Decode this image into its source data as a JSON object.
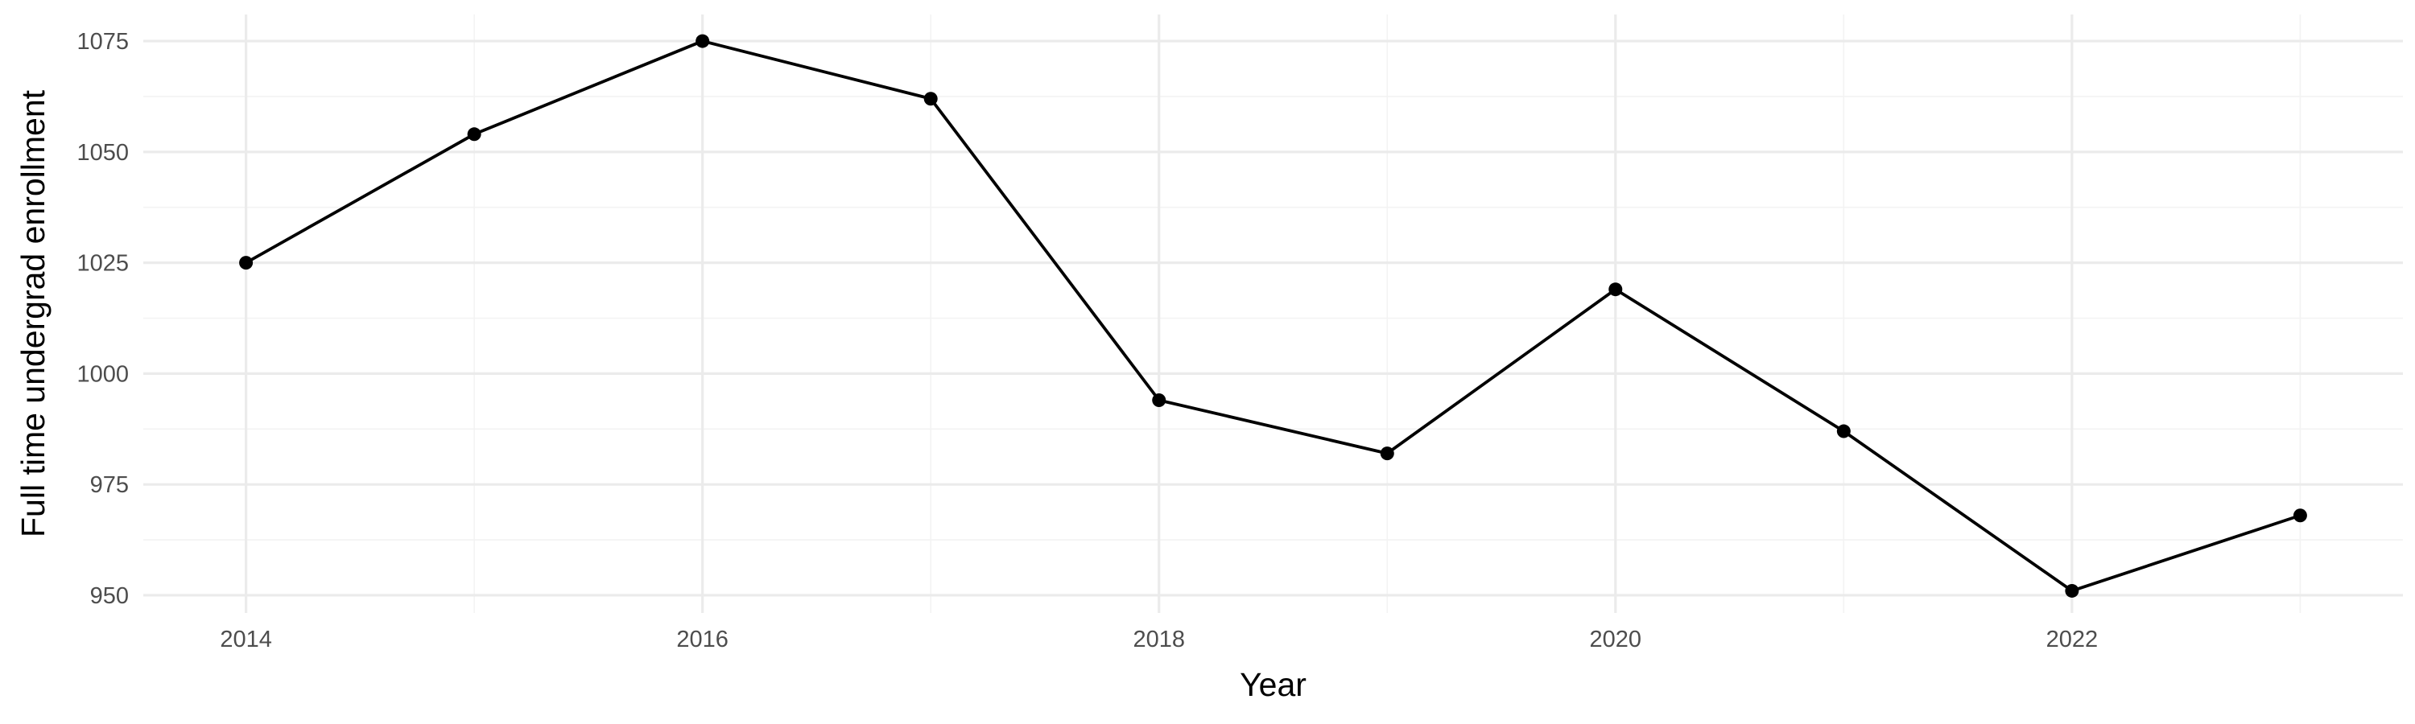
{
  "chart_data": {
    "type": "line",
    "title": "",
    "xlabel": "Year",
    "ylabel": "Full time undergrad enrollment",
    "x": [
      2014,
      2015,
      2016,
      2017,
      2018,
      2019,
      2020,
      2021,
      2022,
      2023
    ],
    "series": [
      {
        "values": [
          1025,
          1054,
          1075,
          1062,
          994,
          982,
          1019,
          987,
          951,
          968
        ],
        "color": "#000000"
      }
    ],
    "xlim": [
      2013.55,
      2023.45
    ],
    "ylim": [
      946,
      1081
    ],
    "x_ticks": [
      2014,
      2016,
      2018,
      2020,
      2022
    ],
    "x_tick_labels": [
      "2014",
      "2016",
      "2018",
      "2020",
      "2022"
    ],
    "y_ticks": [
      950,
      975,
      1000,
      1025,
      1050,
      1075
    ],
    "y_tick_labels": [
      "950",
      "975",
      "1000",
      "1025",
      "1050",
      "1075"
    ],
    "grid": true,
    "legend": "none",
    "markers": true
  }
}
